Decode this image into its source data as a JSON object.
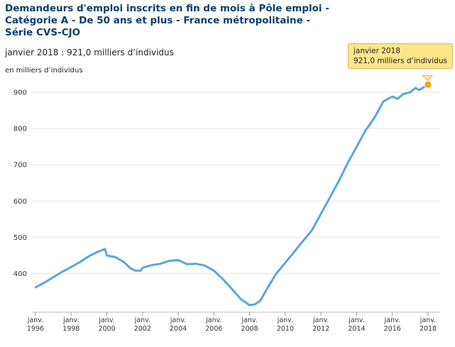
{
  "chart_data": {
    "type": "line",
    "title": "Demandeurs d'emploi inscrits en fin de mois à Pôle emploi - Catégorie A - De 50 ans et plus - France métropolitaine - Série CVS-CJO",
    "subtitle": "janvier 2018 : 921,0 milliers d’individus",
    "ylabel": "en milliers d’individus",
    "ylim": [
      300,
      930
    ],
    "yticks": [
      400,
      500,
      600,
      700,
      800,
      900
    ],
    "xticks": [
      {
        "month": "janv.",
        "year": "1996",
        "x": 1996
      },
      {
        "month": "janv.",
        "year": "1998",
        "x": 1998
      },
      {
        "month": "janv.",
        "year": "2000",
        "x": 2000
      },
      {
        "month": "janv.",
        "year": "2002",
        "x": 2002
      },
      {
        "month": "janv.",
        "year": "2004",
        "x": 2004
      },
      {
        "month": "janv.",
        "year": "2006",
        "x": 2006
      },
      {
        "month": "janv.",
        "year": "2008",
        "x": 2008
      },
      {
        "month": "janv.",
        "year": "2010",
        "x": 2010
      },
      {
        "month": "janv.",
        "year": "2012",
        "x": 2012
      },
      {
        "month": "janv.",
        "year": "2014",
        "x": 2014
      },
      {
        "month": "janv.",
        "year": "2016",
        "x": 2016
      },
      {
        "month": "janv.",
        "year": "2018",
        "x": 2018
      }
    ],
    "xlim": [
      1996,
      2018.2
    ],
    "series": [
      {
        "color": "#5aa5e0",
        "points": [
          [
            1996.0,
            362
          ],
          [
            1996.5,
            375
          ],
          [
            1997.0,
            390
          ],
          [
            1997.5,
            405
          ],
          [
            1998.0,
            418
          ],
          [
            1998.5,
            432
          ],
          [
            1999.0,
            448
          ],
          [
            1999.5,
            460
          ],
          [
            1999.9,
            468
          ],
          [
            2000.0,
            450
          ],
          [
            2000.5,
            445
          ],
          [
            2001.0,
            430
          ],
          [
            2001.3,
            415
          ],
          [
            2001.6,
            408
          ],
          [
            2001.9,
            408
          ],
          [
            2002.0,
            416
          ],
          [
            2002.5,
            423
          ],
          [
            2003.0,
            427
          ],
          [
            2003.5,
            435
          ],
          [
            2004.0,
            437
          ],
          [
            2004.5,
            426
          ],
          [
            2005.0,
            427
          ],
          [
            2005.5,
            422
          ],
          [
            2006.0,
            408
          ],
          [
            2006.5,
            385
          ],
          [
            2007.0,
            358
          ],
          [
            2007.5,
            330
          ],
          [
            2008.0,
            313
          ],
          [
            2008.3,
            315
          ],
          [
            2008.6,
            325
          ],
          [
            2009.0,
            360
          ],
          [
            2009.5,
            400
          ],
          [
            2010.0,
            430
          ],
          [
            2010.5,
            460
          ],
          [
            2011.0,
            490
          ],
          [
            2011.5,
            520
          ],
          [
            2012.0,
            565
          ],
          [
            2012.5,
            610
          ],
          [
            2013.0,
            655
          ],
          [
            2013.5,
            705
          ],
          [
            2014.0,
            750
          ],
          [
            2014.5,
            795
          ],
          [
            2015.0,
            830
          ],
          [
            2015.5,
            875
          ],
          [
            2016.0,
            888
          ],
          [
            2016.3,
            882
          ],
          [
            2016.6,
            895
          ],
          [
            2017.0,
            900
          ],
          [
            2017.3,
            912
          ],
          [
            2017.5,
            906
          ],
          [
            2018.0,
            921
          ]
        ]
      }
    ],
    "highlight": {
      "x": 2018.0,
      "y": 921,
      "color": "#f7a21b",
      "label_date": "janvier 2018",
      "label_value": "921,0 milliers d’individus"
    }
  }
}
